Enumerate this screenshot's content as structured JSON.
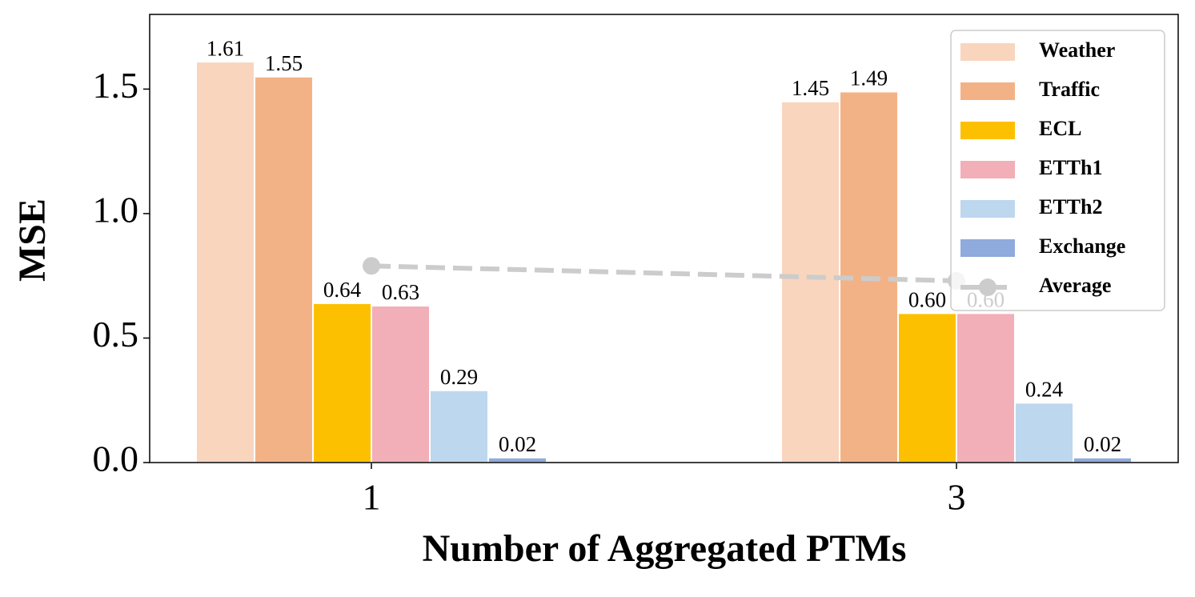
{
  "chart_data": {
    "type": "bar",
    "xlabel": "Number of Aggregated PTMs",
    "ylabel": "MSE",
    "categories": [
      "1",
      "3"
    ],
    "series": [
      {
        "name": "Weather",
        "color": "#f9d5be",
        "values": [
          1.61,
          1.45
        ]
      },
      {
        "name": "Traffic",
        "color": "#f3b286",
        "values": [
          1.55,
          1.49
        ]
      },
      {
        "name": "ECL",
        "color": "#fdc000",
        "values": [
          0.64,
          0.6
        ],
        "value_labels": [
          "0.64",
          "0.60"
        ]
      },
      {
        "name": "ETTh1",
        "color": "#f2afb7",
        "values": [
          0.63,
          0.6
        ],
        "value_labels": [
          "0.63",
          "0.60"
        ]
      },
      {
        "name": "ETTh2",
        "color": "#bdd7ee",
        "values": [
          0.29,
          0.24
        ],
        "value_labels": [
          "0.29",
          "0.24"
        ]
      },
      {
        "name": "Exchange",
        "color": "#8faadc",
        "values": [
          0.02,
          0.02
        ],
        "value_labels": [
          "0.02",
          "0.02"
        ]
      },
      {
        "name": "Average",
        "color": "#cccccc",
        "type": "line",
        "dashed": true,
        "values": [
          0.79,
          0.73
        ]
      }
    ],
    "ylim": [
      0,
      1.8
    ],
    "yticks": [
      {
        "value": 0,
        "label": "0.0"
      },
      0.5,
      {
        "value": 1,
        "label": "1.0"
      },
      1.5
    ],
    "legend": "upper right"
  }
}
